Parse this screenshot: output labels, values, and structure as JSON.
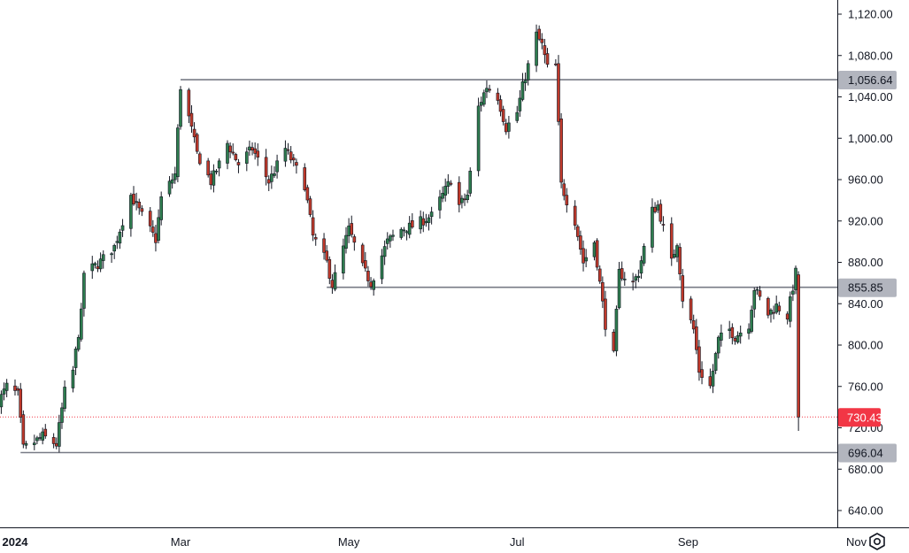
{
  "chart_data": {
    "type": "candlestick",
    "y_ticks": [
      640,
      680,
      720,
      760,
      800,
      840,
      880,
      920,
      960,
      1000,
      1040,
      1080,
      1120
    ],
    "y_tick_labels": [
      "640.00",
      "680.00",
      "720.00",
      "760.00",
      "800.00",
      "840.00",
      "880.00",
      "920.00",
      "960.00",
      "1,000.00",
      "1,040.00",
      "1,080.00",
      "1,120.00"
    ],
    "ylim": [
      615,
      1133
    ],
    "x_labels": [
      {
        "text": "2024",
        "date": "2024-01-01",
        "bold": true
      },
      {
        "text": "Mar",
        "date": "2024-03-01",
        "bold": false
      },
      {
        "text": "May",
        "date": "2024-05-01",
        "bold": false
      },
      {
        "text": "Jul",
        "date": "2024-07-01",
        "bold": false
      },
      {
        "text": "Sep",
        "date": "2024-09-01",
        "bold": false
      },
      {
        "text": "Nov",
        "date": "2024-11-01",
        "bold": false
      }
    ],
    "levels": [
      {
        "value": 1056.64,
        "label": "1,056.64",
        "start_date": "2024-03-01"
      },
      {
        "value": 855.85,
        "label": "855.85",
        "start_date": "2024-04-23"
      },
      {
        "value": 696.04,
        "label": "696.04",
        "start_date": "2024-01-03"
      }
    ],
    "last_price": {
      "value": 730.43,
      "label": "730.43"
    },
    "colors": {
      "up": "#2e7d4f",
      "down": "#c0392b",
      "wick": "#131722",
      "level": "#787b86",
      "last": "#f23645"
    },
    "anchors": [
      [
        "2023-12-26",
        745
      ],
      [
        "2023-12-29",
        760
      ],
      [
        "2024-01-02",
        752
      ],
      [
        "2024-01-04",
        700
      ],
      [
        "2024-01-08",
        706
      ],
      [
        "2024-01-11",
        712
      ],
      [
        "2024-01-16",
        704
      ],
      [
        "2024-01-19",
        755
      ],
      [
        "2024-01-22",
        775
      ],
      [
        "2024-01-25",
        830
      ],
      [
        "2024-01-26",
        870
      ],
      [
        "2024-01-31",
        878
      ],
      [
        "2024-02-06",
        895
      ],
      [
        "2024-02-09",
        920
      ],
      [
        "2024-02-12",
        945
      ],
      [
        "2024-02-15",
        930
      ],
      [
        "2024-02-21",
        902
      ],
      [
        "2024-02-23",
        942
      ],
      [
        "2024-02-28",
        965
      ],
      [
        "2024-03-01",
        1050
      ],
      [
        "2024-03-04",
        1020
      ],
      [
        "2024-03-07",
        985
      ],
      [
        "2024-03-12",
        958
      ],
      [
        "2024-03-15",
        975
      ],
      [
        "2024-03-18",
        995
      ],
      [
        "2024-03-22",
        975
      ],
      [
        "2024-03-27",
        990
      ],
      [
        "2024-04-02",
        958
      ],
      [
        "2024-04-08",
        990
      ],
      [
        "2024-04-12",
        970
      ],
      [
        "2024-04-15",
        955
      ],
      [
        "2024-04-18",
        905
      ],
      [
        "2024-04-23",
        880
      ],
      [
        "2024-04-25",
        858
      ],
      [
        "2024-05-01",
        912
      ],
      [
        "2024-05-06",
        875
      ],
      [
        "2024-05-09",
        860
      ],
      [
        "2024-05-15",
        900
      ],
      [
        "2024-05-20",
        912
      ],
      [
        "2024-05-24",
        915
      ],
      [
        "2024-05-31",
        925
      ],
      [
        "2024-06-05",
        950
      ],
      [
        "2024-06-07",
        960
      ],
      [
        "2024-06-10",
        935
      ],
      [
        "2024-06-13",
        945
      ],
      [
        "2024-06-17",
        1030
      ],
      [
        "2024-06-20",
        1050
      ],
      [
        "2024-06-24",
        1040
      ],
      [
        "2024-06-27",
        1010
      ],
      [
        "2024-07-01",
        1025
      ],
      [
        "2024-07-03",
        1050
      ],
      [
        "2024-07-08",
        1100
      ],
      [
        "2024-07-10",
        1090
      ],
      [
        "2024-07-12",
        1068
      ],
      [
        "2024-07-15",
        1070
      ],
      [
        "2024-07-17",
        955
      ],
      [
        "2024-07-19",
        940
      ],
      [
        "2024-07-22",
        920
      ],
      [
        "2024-07-25",
        880
      ],
      [
        "2024-07-29",
        900
      ],
      [
        "2024-07-31",
        860
      ],
      [
        "2024-08-02",
        820
      ],
      [
        "2024-08-05",
        790
      ],
      [
        "2024-08-07",
        870
      ],
      [
        "2024-08-12",
        860
      ],
      [
        "2024-08-14",
        870
      ],
      [
        "2024-08-19",
        930
      ],
      [
        "2024-08-21",
        935
      ],
      [
        "2024-08-26",
        880
      ],
      [
        "2024-08-28",
        900
      ],
      [
        "2024-08-30",
        845
      ],
      [
        "2024-09-03",
        815
      ],
      [
        "2024-09-05",
        775
      ],
      [
        "2024-09-09",
        760
      ],
      [
        "2024-09-12",
        805
      ],
      [
        "2024-09-16",
        815
      ],
      [
        "2024-09-18",
        808
      ],
      [
        "2024-09-23",
        820
      ],
      [
        "2024-09-25",
        855
      ],
      [
        "2024-09-30",
        830
      ],
      [
        "2024-10-03",
        838
      ],
      [
        "2024-10-07",
        828
      ],
      [
        "2024-10-08",
        842
      ],
      [
        "2024-10-10",
        870
      ],
      [
        "2024-10-11",
        730.43
      ]
    ]
  },
  "ui": {
    "settings_icon": "settings-icon"
  }
}
